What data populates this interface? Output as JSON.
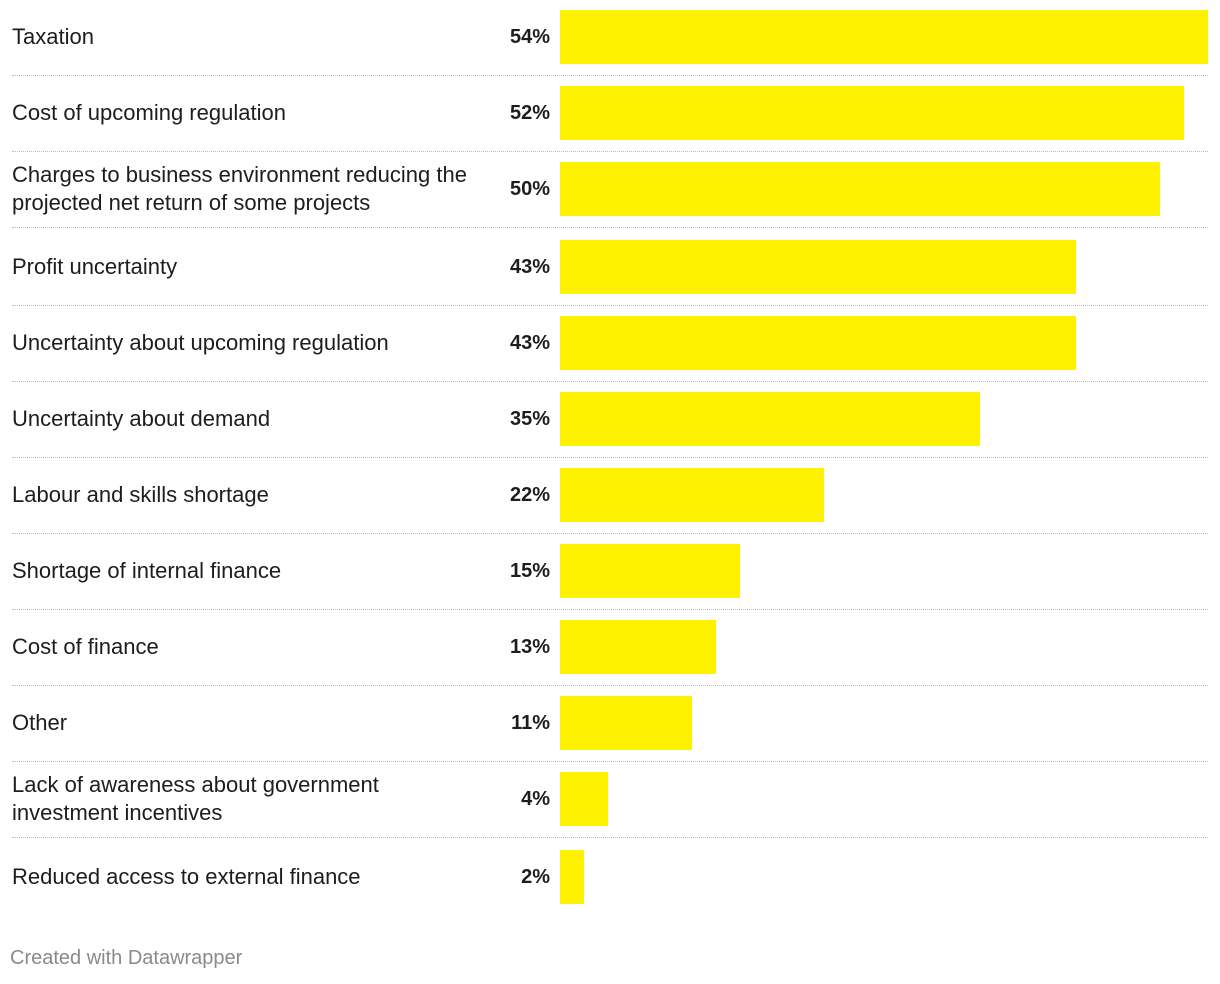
{
  "chart_data": {
    "type": "bar",
    "orientation": "horizontal",
    "categories": [
      "Taxation",
      "Cost of upcoming regulation",
      "Charges to business environment reducing the projected net return of some projects",
      "Profit uncertainty",
      "Uncertainty about upcoming regulation",
      "Uncertainty about demand",
      "Labour and skills shortage",
      "Shortage of internal finance",
      "Cost of finance",
      "Other",
      "Lack of awareness about government investment incentives",
      "Reduced access to external finance"
    ],
    "values": [
      54,
      52,
      50,
      43,
      43,
      35,
      22,
      15,
      13,
      11,
      4,
      2
    ],
    "value_labels": [
      "54%",
      "52%",
      "50%",
      "43%",
      "43%",
      "35%",
      "22%",
      "15%",
      "13%",
      "11%",
      "4%",
      "2%"
    ],
    "unit": "%",
    "xlim": [
      0,
      54
    ],
    "title": "",
    "xlabel": "",
    "ylabel": "",
    "bar_color": "#fff200",
    "grid": false
  },
  "footer": {
    "credit": "Created with Datawrapper"
  }
}
